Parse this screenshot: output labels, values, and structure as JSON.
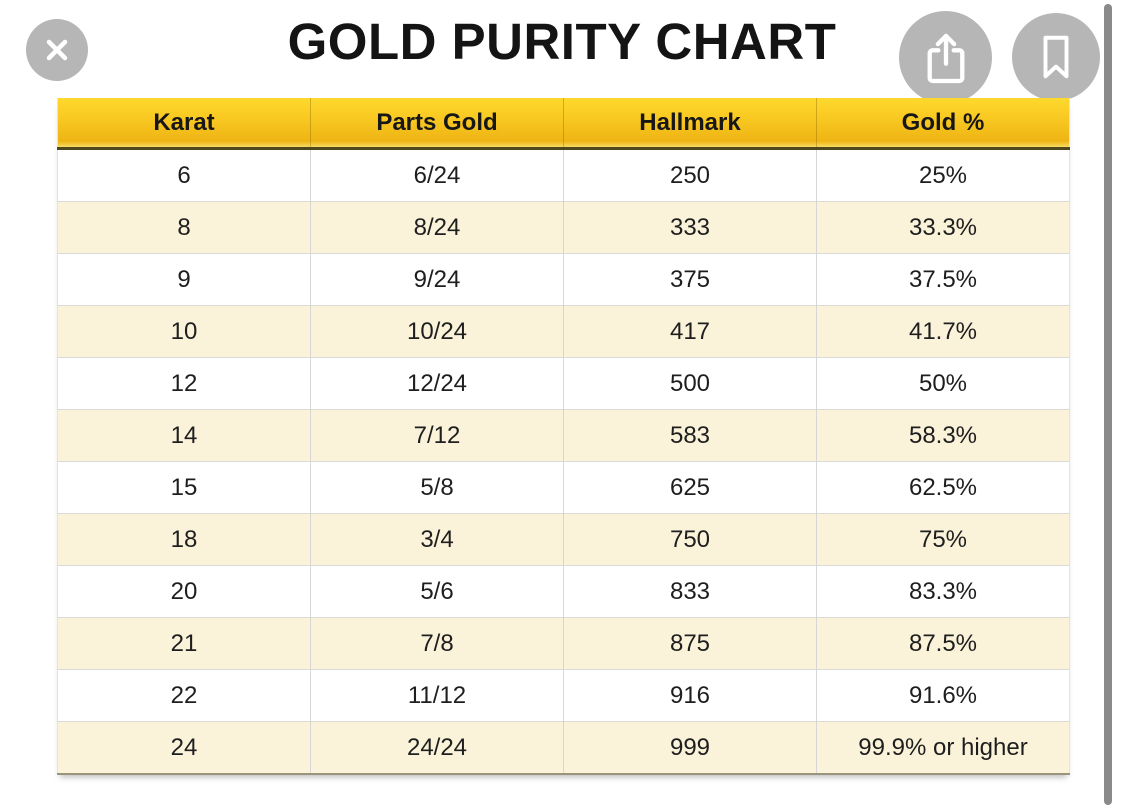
{
  "window": {
    "title": "GOLD PURITY CHART"
  },
  "toolbar": {
    "close_icon": "close-icon",
    "share_icon": "share-icon",
    "bookmark_icon": "bookmark-icon"
  },
  "table": {
    "headers": [
      "Karat",
      "Parts Gold",
      "Hallmark",
      "Gold %"
    ],
    "rows": [
      [
        "6",
        "6/24",
        "250",
        "25%"
      ],
      [
        "8",
        "8/24",
        "333",
        "33.3%"
      ],
      [
        "9",
        "9/24",
        "375",
        "37.5%"
      ],
      [
        "10",
        "10/24",
        "417",
        "41.7%"
      ],
      [
        "12",
        "12/24",
        "500",
        "50%"
      ],
      [
        "14",
        "7/12",
        "583",
        "58.3%"
      ],
      [
        "15",
        "5/8",
        "625",
        "62.5%"
      ],
      [
        "18",
        "3/4",
        "750",
        "75%"
      ],
      [
        "20",
        "5/6",
        "833",
        "83.3%"
      ],
      [
        "21",
        "7/8",
        "875",
        "87.5%"
      ],
      [
        "22",
        "11/12",
        "916",
        "91.6%"
      ],
      [
        "24",
        "24/24",
        "999",
        "99.9% or higher"
      ]
    ]
  },
  "colors": {
    "header_gold_top": "#ffd92e",
    "header_gold_bottom": "#eeb414",
    "header_border_dark": "#50481d",
    "row_alt_cream": "#faf3da",
    "grid_line": "#d6d6d6",
    "text": "#1e1e1e",
    "title_text": "#141414",
    "control_circle_gray": "#b6b6b6",
    "scrollbar_gray": "#8a8a8a"
  },
  "chart_data": {
    "type": "table",
    "title": "GOLD PURITY CHART",
    "columns": [
      "Karat",
      "Parts Gold",
      "Hallmark",
      "Gold %"
    ],
    "rows": [
      [
        "6",
        "6/24",
        "250",
        "25%"
      ],
      [
        "8",
        "8/24",
        "333",
        "33.3%"
      ],
      [
        "9",
        "9/24",
        "375",
        "37.5%"
      ],
      [
        "10",
        "10/24",
        "417",
        "41.7%"
      ],
      [
        "12",
        "12/24",
        "500",
        "50%"
      ],
      [
        "14",
        "7/12",
        "583",
        "58.3%"
      ],
      [
        "15",
        "5/8",
        "625",
        "62.5%"
      ],
      [
        "18",
        "3/4",
        "750",
        "75%"
      ],
      [
        "20",
        "5/6",
        "833",
        "83.3%"
      ],
      [
        "21",
        "7/8",
        "875",
        "87.5%"
      ],
      [
        "22",
        "11/12",
        "916",
        "91.6%"
      ],
      [
        "24",
        "24/24",
        "999",
        "99.9% or higher"
      ]
    ]
  }
}
